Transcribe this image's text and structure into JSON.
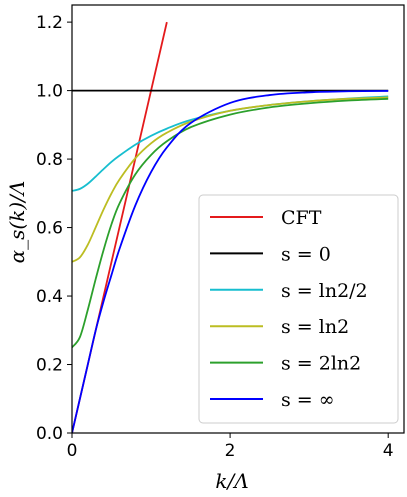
{
  "chart_data": {
    "type": "line",
    "title": "",
    "xlabel": "k/Λ",
    "ylabel": "α_s(k)/Λ",
    "xlim": [
      0,
      4.2
    ],
    "ylim": [
      0,
      1.25
    ],
    "x_ticks": [
      0,
      2,
      4
    ],
    "x_tick_labels": [
      "0",
      "2",
      "4"
    ],
    "y_ticks": [
      0.0,
      0.2,
      0.4,
      0.6,
      0.8,
      1.0,
      1.2
    ],
    "y_tick_labels": [
      "0.0",
      "0.2",
      "0.4",
      "0.6",
      "0.8",
      "1.0",
      "1.2"
    ],
    "grid": false,
    "legend_position": "bottom-right",
    "series": [
      {
        "name": "CFT",
        "color": "#e41a1c",
        "x": [
          0,
          1.2
        ],
        "y": [
          0,
          1.2
        ]
      },
      {
        "name": "s = 0",
        "color": "#000000",
        "x": [
          0,
          0.5,
          1,
          1.5,
          2,
          2.5,
          3,
          3.5,
          4
        ],
        "y": [
          1,
          1,
          1,
          1,
          1,
          1,
          1,
          1,
          1
        ]
      },
      {
        "name": "s = ln2/2",
        "color": "#17becf",
        "x": [
          0,
          0.1,
          0.2,
          0.3,
          0.4,
          0.5,
          0.6,
          0.8,
          1.0,
          1.2,
          1.5,
          2.0,
          2.5,
          3.0,
          3.5,
          4.0
        ],
        "y": [
          0.707,
          0.713,
          0.728,
          0.749,
          0.771,
          0.792,
          0.81,
          0.842,
          0.868,
          0.889,
          0.914,
          0.941,
          0.958,
          0.969,
          0.977,
          0.983
        ]
      },
      {
        "name": "s = ln2",
        "color": "#bcbd22",
        "x": [
          0,
          0.1,
          0.2,
          0.3,
          0.4,
          0.5,
          0.6,
          0.8,
          1.0,
          1.2,
          1.5,
          2.0,
          2.5,
          3.0,
          3.5,
          4.0
        ],
        "y": [
          0.5,
          0.513,
          0.55,
          0.601,
          0.653,
          0.7,
          0.74,
          0.802,
          0.846,
          0.877,
          0.909,
          0.941,
          0.958,
          0.969,
          0.976,
          0.98
        ]
      },
      {
        "name": "s = 2ln2",
        "color": "#2ca02c",
        "x": [
          0,
          0.1,
          0.2,
          0.3,
          0.4,
          0.5,
          0.6,
          0.8,
          1.0,
          1.2,
          1.5,
          2.0,
          2.5,
          3.0,
          3.5,
          4.0
        ],
        "y": [
          0.25,
          0.28,
          0.36,
          0.45,
          0.535,
          0.61,
          0.67,
          0.755,
          0.812,
          0.852,
          0.893,
          0.93,
          0.951,
          0.963,
          0.971,
          0.976
        ]
      },
      {
        "name": "s = ∞",
        "color": "#0000ff",
        "x": [
          0,
          0.1,
          0.2,
          0.3,
          0.4,
          0.5,
          0.6,
          0.8,
          1.0,
          1.2,
          1.5,
          2.0,
          2.5,
          3.0,
          3.5,
          4.0
        ],
        "y": [
          0,
          0.1,
          0.2,
          0.3,
          0.385,
          0.462,
          0.537,
          0.664,
          0.762,
          0.834,
          0.905,
          0.964,
          0.987,
          0.995,
          0.998,
          0.999
        ]
      }
    ]
  }
}
